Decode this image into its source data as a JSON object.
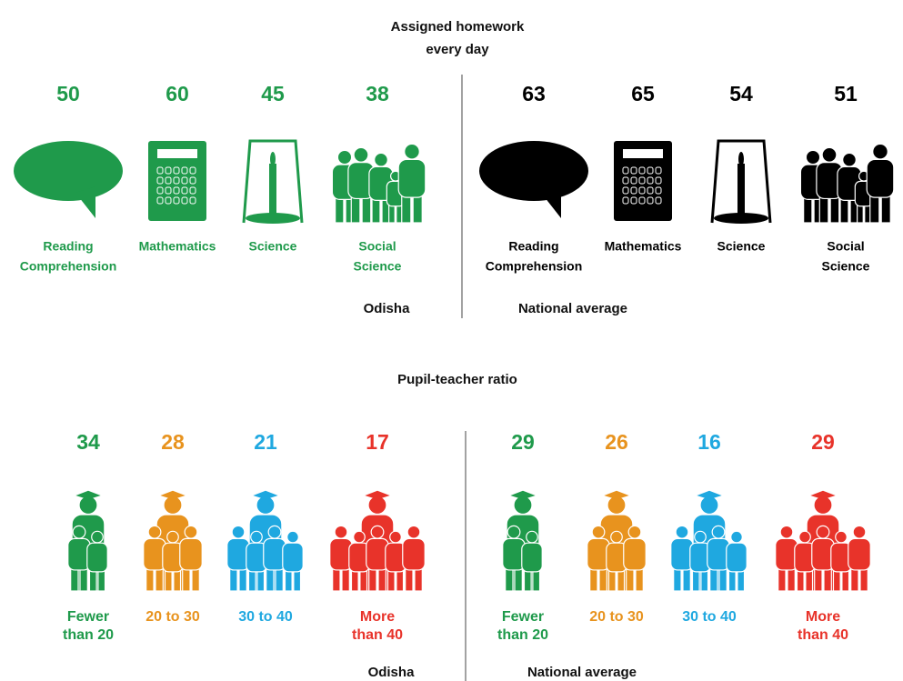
{
  "homework": {
    "title": [
      "Assigned homework",
      "every day"
    ],
    "groups": [
      {
        "name": "Odisha",
        "color": "#1f9a4b",
        "items": [
          {
            "value": 50,
            "label": [
              "Reading",
              "Comprehension"
            ]
          },
          {
            "value": 60,
            "label": [
              "Mathematics"
            ]
          },
          {
            "value": 45,
            "label": [
              "Science"
            ]
          },
          {
            "value": 38,
            "label": [
              "Social",
              "Science"
            ]
          }
        ]
      },
      {
        "name": "National average",
        "color": "#000000",
        "items": [
          {
            "value": 63,
            "label": [
              "Reading",
              "Comprehension"
            ]
          },
          {
            "value": 65,
            "label": [
              "Mathematics"
            ]
          },
          {
            "value": 54,
            "label": [
              "Science"
            ]
          },
          {
            "value": 51,
            "label": [
              "Social",
              "Science"
            ]
          }
        ]
      }
    ]
  },
  "pupil_teacher": {
    "title": "Pupil-teacher ratio",
    "groups": [
      {
        "name": "Odisha",
        "items": [
          {
            "value": 34,
            "label": [
              "Fewer",
              "than 20"
            ],
            "color": "#1f9a4b"
          },
          {
            "value": 28,
            "label": [
              "20 to 30"
            ],
            "color": "#e8931e"
          },
          {
            "value": 21,
            "label": [
              "30 to 40"
            ],
            "color": "#1fa8e0"
          },
          {
            "value": 17,
            "label": [
              "More",
              "than 40"
            ],
            "color": "#e8332a"
          }
        ]
      },
      {
        "name": "National average",
        "items": [
          {
            "value": 29,
            "label": [
              "Fewer",
              "than 20"
            ],
            "color": "#1f9a4b"
          },
          {
            "value": 26,
            "label": [
              "20 to 30"
            ],
            "color": "#e8931e"
          },
          {
            "value": 16,
            "label": [
              "30 to 40"
            ],
            "color": "#1fa8e0"
          },
          {
            "value": 29,
            "label": [
              "More",
              "than 40"
            ],
            "color": "#e8332a"
          }
        ]
      }
    ]
  }
}
